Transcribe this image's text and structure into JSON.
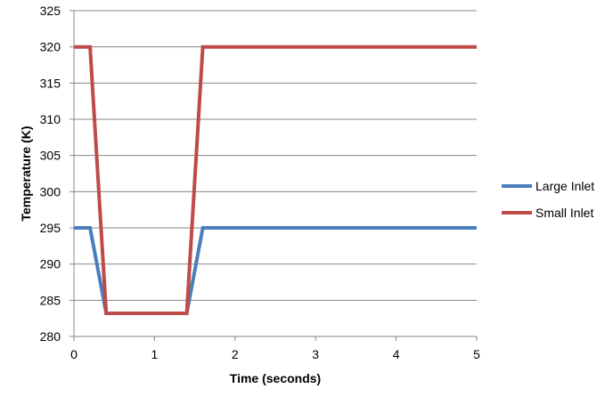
{
  "chart_data": {
    "type": "line",
    "title": "",
    "xlabel": "Time (seconds)",
    "ylabel": "Temperature (K)",
    "xlim": [
      0,
      5
    ],
    "ylim": [
      280,
      325
    ],
    "x_ticks": [
      "0",
      "1",
      "2",
      "3",
      "4",
      "5"
    ],
    "y_ticks": [
      "280",
      "285",
      "290",
      "295",
      "300",
      "305",
      "310",
      "315",
      "320",
      "325"
    ],
    "grid": "horizontal",
    "legend_position": "right",
    "series": [
      {
        "name": "Large Inlet",
        "color": "#4a7ebb",
        "x": [
          0,
          0.2,
          0.4,
          1.4,
          1.6,
          5
        ],
        "y": [
          295,
          295,
          283.2,
          283.2,
          295,
          295
        ]
      },
      {
        "name": "Small Inlet",
        "color": "#be4b48",
        "x": [
          0,
          0.2,
          0.4,
          1.4,
          1.6,
          5
        ],
        "y": [
          320,
          320,
          283.2,
          283.2,
          320,
          320
        ]
      }
    ]
  }
}
